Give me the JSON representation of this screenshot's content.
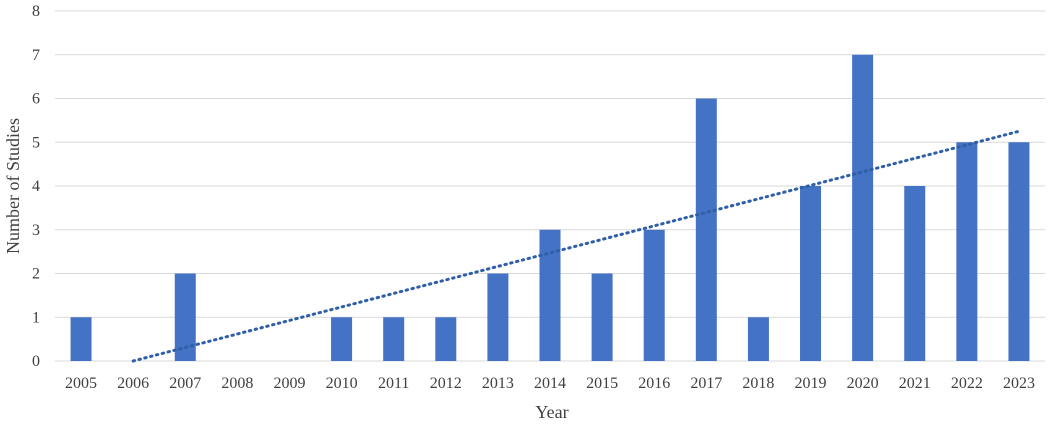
{
  "chart_data": {
    "type": "bar",
    "title": "",
    "xlabel": "Year",
    "ylabel": "Number of Studies",
    "categories": [
      "2005",
      "2006",
      "2007",
      "2008",
      "2009",
      "2010",
      "2011",
      "2012",
      "2013",
      "2014",
      "2015",
      "2016",
      "2017",
      "2018",
      "2019",
      "2020",
      "2021",
      "2022",
      "2023"
    ],
    "values": [
      1,
      0,
      2,
      0,
      0,
      1,
      1,
      1,
      2,
      3,
      2,
      3,
      6,
      1,
      4,
      7,
      4,
      5,
      5
    ],
    "ylim": [
      0,
      8
    ],
    "yticks": [
      "0",
      "1",
      "2",
      "3",
      "4",
      "5",
      "6",
      "7",
      "8"
    ],
    "grid": true,
    "legend": "none",
    "trendline": {
      "type": "linear",
      "style": "dotted",
      "start": {
        "x": "2006",
        "y": 0.0
      },
      "end": {
        "x": "2023",
        "y": 5.25
      }
    },
    "colors": {
      "bar": "#4472C4",
      "trendline": "#2E5FA8",
      "grid": "#D9D9D9",
      "text": "#404040"
    }
  }
}
